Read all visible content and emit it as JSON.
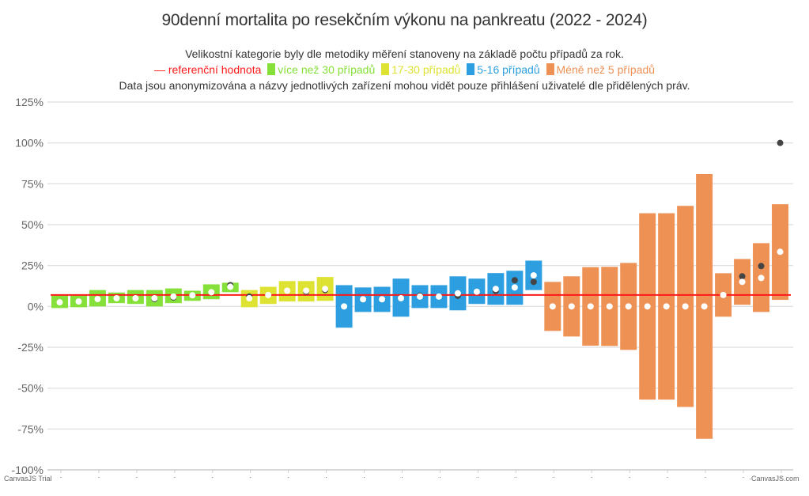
{
  "header": {
    "title": "90denní mortalita po resekčním výkonu na pankreatu (2022 - 2024)",
    "subtitle1": "Velikostní kategorie byly dle metodiky měření stanoveny na základě počtu případů za rok.",
    "subtitle3": "Data jsou anonymizována a názvy jednotlivých zařízení mohou vidět pouze přihlášení uživatelé dle přidělených práv."
  },
  "legend": [
    {
      "label": "— referenční hodnota",
      "color": "#ff1a1a",
      "swatch": false
    },
    {
      "label": "více než 30 případů",
      "color": "#86e03a",
      "swatch": true
    },
    {
      "label": "17-30 případů",
      "color": "#dde233",
      "swatch": true
    },
    {
      "label": "5-16 případů",
      "color": "#2d9fe0",
      "swatch": true
    },
    {
      "label": "Méně než 5 případů",
      "color": "#ee9155",
      "swatch": true
    }
  ],
  "watermarks": {
    "left": "CanvasJS Trial",
    "right": "CanvasJS.com"
  },
  "chart_data": {
    "type": "range-bar-with-points",
    "title": "90denní mortalita po resekčním výkonu na pankreatu (2022 - 2024)",
    "ylabel": "",
    "xlabel": "",
    "ylim": [
      -100,
      125
    ],
    "yticks": [
      125,
      100,
      75,
      50,
      25,
      0,
      -25,
      -50,
      -75,
      -100
    ],
    "ytick_labels": [
      "125%",
      "100%",
      "75%",
      "50%",
      "25%",
      "0%",
      "-25%",
      "-50%",
      "-75%",
      "-100%"
    ],
    "xtick_label": "·",
    "grid": true,
    "reference_value": 7,
    "reference_color": "#ff1a1a",
    "category_colors": {
      "gt30": "#86e03a",
      "17-30": "#dde233",
      "5-16": "#2d9fe0",
      "lt5": "#ee9155"
    },
    "bars": [
      {
        "cat": "gt30",
        "low": -1,
        "high": 7,
        "value": 2.5
      },
      {
        "cat": "gt30",
        "low": -0.5,
        "high": 7,
        "value": 3
      },
      {
        "cat": "gt30",
        "low": 0,
        "high": 10,
        "value": 4.5
      },
      {
        "cat": "gt30",
        "low": 2,
        "high": 8.5,
        "value": 5
      },
      {
        "cat": "gt30",
        "low": 1.5,
        "high": 10,
        "value": 5
      },
      {
        "cat": "gt30",
        "low": 0,
        "high": 10,
        "value": 5,
        "prev": 4.5
      },
      {
        "cat": "gt30",
        "low": 2,
        "high": 11,
        "value": 6,
        "prev": 5.5
      },
      {
        "cat": "gt30",
        "low": 3.4,
        "high": 9.6,
        "value": 6.8
      },
      {
        "cat": "gt30",
        "low": 4.4,
        "high": 13.5,
        "value": 8.7
      },
      {
        "cat": "gt30",
        "low": 8.7,
        "high": 14.5,
        "value": 12,
        "prev": 13
      },
      {
        "cat": "17-30",
        "low": -0.5,
        "high": 10,
        "value": 5,
        "prev": 6
      },
      {
        "cat": "17-30",
        "low": 1.5,
        "high": 12,
        "value": 7
      },
      {
        "cat": "17-30",
        "low": 3,
        "high": 15.5,
        "value": 9.6
      },
      {
        "cat": "17-30",
        "low": 3,
        "high": 15.5,
        "value": 9.6,
        "prev": 9
      },
      {
        "cat": "17-30",
        "low": 3.4,
        "high": 18,
        "value": 10.7,
        "prev": 10
      },
      {
        "cat": "5-16",
        "low": -13,
        "high": 13,
        "value": 0
      },
      {
        "cat": "5-16",
        "low": -3.4,
        "high": 11.6,
        "value": 4.4
      },
      {
        "cat": "5-16",
        "low": -3.4,
        "high": 12,
        "value": 4.4
      },
      {
        "cat": "5-16",
        "low": -6.3,
        "high": 17,
        "value": 5
      },
      {
        "cat": "5-16",
        "low": -1,
        "high": 13,
        "value": 6,
        "prev": 6.5
      },
      {
        "cat": "5-16",
        "low": -1,
        "high": 13,
        "value": 6
      },
      {
        "cat": "5-16",
        "low": -2.4,
        "high": 18.4,
        "value": 8,
        "prev": 6.5
      },
      {
        "cat": "5-16",
        "low": 1.5,
        "high": 17,
        "value": 9
      },
      {
        "cat": "5-16",
        "low": 1,
        "high": 20.4,
        "value": 10.7,
        "prev": 9.5
      },
      {
        "cat": "5-16",
        "low": 1,
        "high": 21.8,
        "value": 11.6,
        "prev": 16
      },
      {
        "cat": "5-16",
        "low": 10,
        "high": 28,
        "value": 19,
        "prev": 15
      },
      {
        "cat": "lt5",
        "low": -15,
        "high": 15,
        "value": 0
      },
      {
        "cat": "lt5",
        "low": -18.4,
        "high": 18.4,
        "value": 0
      },
      {
        "cat": "lt5",
        "low": -24,
        "high": 24,
        "value": 0
      },
      {
        "cat": "lt5",
        "low": -24.2,
        "high": 24.2,
        "value": 0
      },
      {
        "cat": "lt5",
        "low": -26.6,
        "high": 26.6,
        "value": 0
      },
      {
        "cat": "lt5",
        "low": -57,
        "high": 57,
        "value": 0
      },
      {
        "cat": "lt5",
        "low": -57,
        "high": 57,
        "value": 0
      },
      {
        "cat": "lt5",
        "low": -61.5,
        "high": 61.5,
        "value": 0
      },
      {
        "cat": "lt5",
        "low": -81,
        "high": 81,
        "value": 0
      },
      {
        "cat": "lt5",
        "low": -6.3,
        "high": 20.3,
        "value": 7
      },
      {
        "cat": "lt5",
        "low": 1,
        "high": 29,
        "value": 15,
        "prev": 18.4
      },
      {
        "cat": "lt5",
        "low": -3.4,
        "high": 38.7,
        "value": 17.4,
        "prev": 24.7
      },
      {
        "cat": "lt5",
        "low": 4,
        "high": 62.5,
        "value": 33.4,
        "prev": 100
      }
    ],
    "markers": {
      "current": "white dot",
      "previous": "dark gray dot"
    }
  }
}
